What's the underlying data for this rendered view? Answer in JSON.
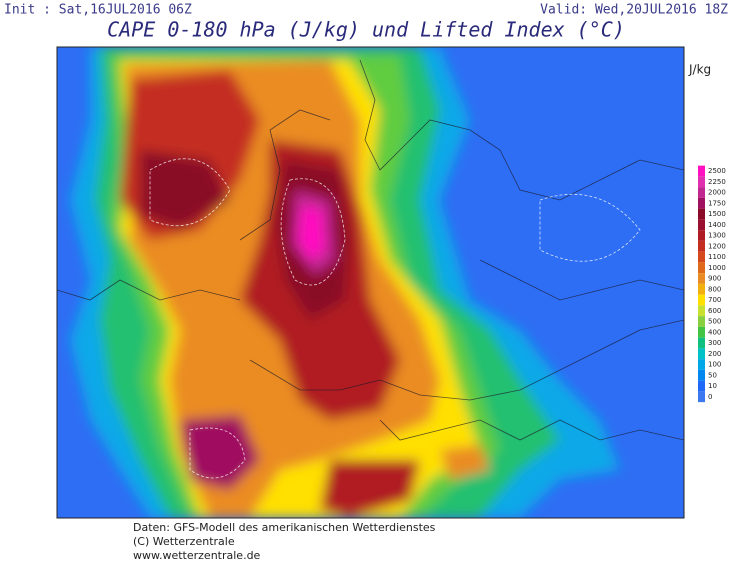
{
  "header": {
    "init": "Init : Sat,16JUL2016 06Z",
    "valid": "Valid: Wed,20JUL2016 18Z",
    "title": "CAPE 0-180 hPa (J/kg) und Lifted Index (°C)"
  },
  "colorbar": {
    "unit": "J/kg",
    "levels": [
      2500,
      2250,
      2000,
      1750,
      1500,
      1400,
      1300,
      1200,
      1100,
      1000,
      900,
      800,
      700,
      600,
      500,
      400,
      300,
      200,
      100,
      50,
      10,
      0
    ],
    "colors": [
      "#ff10c0",
      "#e030b0",
      "#c02890",
      "#a01060",
      "#8a0a28",
      "#9a1030",
      "#b01c24",
      "#c42e20",
      "#d44a1c",
      "#e06a1c",
      "#ea8c24",
      "#f2b010",
      "#ffe000",
      "#c8e030",
      "#88d040",
      "#44c444",
      "#10c080",
      "#00c0c8",
      "#00a8e8",
      "#0088f0",
      "#2068f8",
      "#3c78f0"
    ]
  },
  "footer": {
    "line1": "Daten: GFS-Modell des amerikanischen Wetterdienstes",
    "line2": "(C) Wetterzentrale",
    "line3": "www.wetterzentrale.de"
  }
}
